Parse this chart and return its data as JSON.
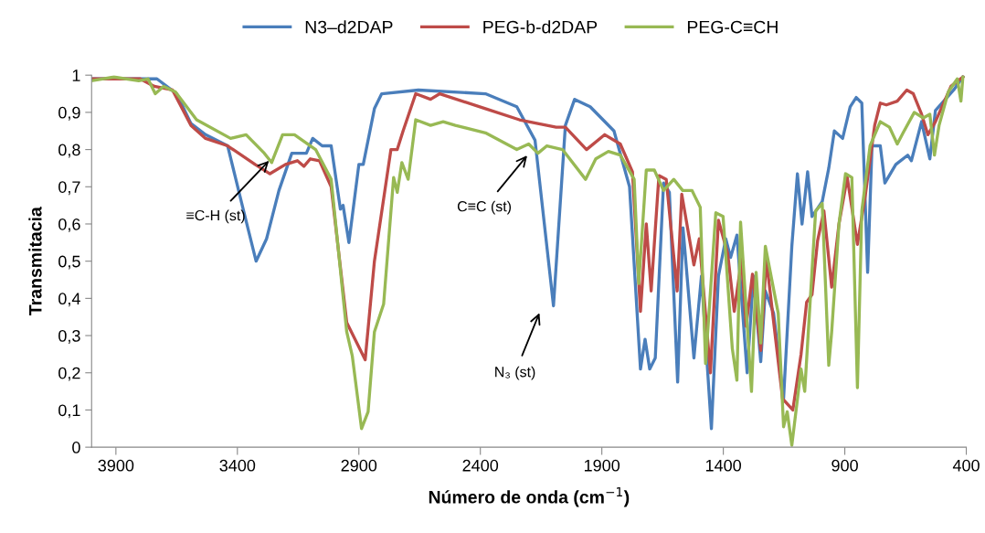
{
  "chart_data": {
    "type": "line",
    "xlabel": "Número de onda (cm$^{−1}$)",
    "ylabel": "Transmitacia",
    "xlim": [
      4000,
      400
    ],
    "xticks": [
      3900,
      3400,
      2900,
      2400,
      1900,
      1400,
      900,
      400
    ],
    "ylim": [
      0,
      1
    ],
    "yticks": [
      {
        "value": 0,
        "label": "0"
      },
      {
        "value": 0.1,
        "label": "0,1"
      },
      {
        "value": 0.2,
        "label": "0,2"
      },
      {
        "value": 0.3,
        "label": "0,3"
      },
      {
        "value": 0.4,
        "label": "0,4"
      },
      {
        "value": 0.5,
        "label": "0,5"
      },
      {
        "value": 0.6,
        "label": "0,6"
      },
      {
        "value": 0.7,
        "label": "0,7"
      },
      {
        "value": 0.8,
        "label": "0,8"
      },
      {
        "value": 0.9,
        "label": "0,9"
      },
      {
        "value": 1,
        "label": "1"
      }
    ],
    "grid": false,
    "legend": "top",
    "marker": "none",
    "line_style": "solid",
    "series": [
      {
        "name": "N3–d2DAP",
        "color": "#4a7ebb",
        "x": [
          4000,
          3800,
          3731,
          3650,
          3591,
          3531,
          3440,
          3380,
          3323,
          3280,
          3229,
          3176,
          3116,
          3090,
          3051,
          3014,
          2976,
          2965,
          2941,
          2900,
          2882,
          2836,
          2806,
          2655,
          2379,
          2250,
          2175,
          2099,
          2050,
          2012,
          1948,
          1850,
          1786,
          1741,
          1722,
          1703,
          1680,
          1646,
          1622,
          1588,
          1566,
          1521,
          1490,
          1449,
          1420,
          1390,
          1370,
          1344,
          1302,
          1276,
          1246,
          1227,
          1193,
          1152,
          1118,
          1095,
          1076,
          1053,
          1035,
          993,
          966,
          943,
          909,
          878,
          853,
          830,
          806,
          788,
          754,
          735,
          690,
          641,
          626,
          584,
          550,
          527,
          452,
          414
        ],
        "values": [
          0.99,
          0.99,
          0.99,
          0.95,
          0.87,
          0.84,
          0.81,
          0.65,
          0.5,
          0.56,
          0.69,
          0.79,
          0.79,
          0.83,
          0.81,
          0.81,
          0.64,
          0.65,
          0.55,
          0.76,
          0.76,
          0.91,
          0.95,
          0.96,
          0.95,
          0.915,
          0.825,
          0.38,
          0.865,
          0.935,
          0.915,
          0.85,
          0.7,
          0.21,
          0.29,
          0.21,
          0.24,
          0.71,
          0.685,
          0.175,
          0.59,
          0.24,
          0.46,
          0.05,
          0.46,
          0.56,
          0.51,
          0.57,
          0.2,
          0.46,
          0.23,
          0.42,
          0.36,
          0.13,
          0.54,
          0.735,
          0.6,
          0.74,
          0.62,
          0.66,
          0.75,
          0.85,
          0.83,
          0.915,
          0.94,
          0.925,
          0.47,
          0.81,
          0.81,
          0.71,
          0.76,
          0.785,
          0.77,
          0.875,
          0.775,
          0.905,
          0.96,
          0.995
        ]
      },
      {
        "name": "PEG-b-d2DAP",
        "color": "#be4b48",
        "x": [
          4000,
          3800,
          3742,
          3667,
          3591,
          3531,
          3440,
          3327,
          3266,
          3202,
          3153,
          3126,
          3100,
          3062,
          3014,
          2950,
          2874,
          2836,
          2768,
          2742,
          2718,
          2666,
          2605,
          2567,
          2379,
          2239,
          2088,
          2050,
          1963,
          1888,
          1824,
          1774,
          1741,
          1717,
          1697,
          1665,
          1635,
          1590,
          1571,
          1521,
          1499,
          1453,
          1420,
          1382,
          1355,
          1325,
          1306,
          1280,
          1246,
          1223,
          1156,
          1114,
          1080,
          1057,
          1035,
          1012,
          986,
          954,
          924,
          890,
          848,
          815,
          777,
          754,
          729,
          684,
          645,
          618,
          584,
          558,
          527,
          463,
          414
        ],
        "values": [
          0.99,
          0.99,
          0.97,
          0.96,
          0.865,
          0.83,
          0.81,
          0.76,
          0.735,
          0.76,
          0.77,
          0.755,
          0.775,
          0.77,
          0.7,
          0.335,
          0.235,
          0.5,
          0.8,
          0.8,
          0.85,
          0.95,
          0.935,
          0.95,
          0.91,
          0.88,
          0.86,
          0.86,
          0.8,
          0.84,
          0.815,
          0.74,
          0.365,
          0.6,
          0.42,
          0.73,
          0.72,
          0.42,
          0.68,
          0.49,
          0.56,
          0.2,
          0.61,
          0.52,
          0.365,
          0.505,
          0.325,
          0.465,
          0.26,
          0.505,
          0.13,
          0.1,
          0.25,
          0.39,
          0.41,
          0.555,
          0.635,
          0.43,
          0.6,
          0.725,
          0.545,
          0.68,
          0.865,
          0.925,
          0.92,
          0.93,
          0.96,
          0.95,
          0.895,
          0.84,
          0.875,
          0.97,
          0.995
        ]
      },
      {
        "name": "PEG-C≡CH",
        "color": "#98b954",
        "x": [
          4000,
          3908,
          3806,
          3768,
          3738,
          3704,
          3655,
          3568,
          3428,
          3364,
          3289,
          3259,
          3214,
          3165,
          3078,
          3014,
          2950,
          2927,
          2889,
          2862,
          2836,
          2798,
          2757,
          2742,
          2723,
          2697,
          2666,
          2605,
          2553,
          2503,
          2379,
          2250,
          2201,
          2163,
          2126,
          2062,
          1967,
          1925,
          1873,
          1824,
          1767,
          1748,
          1717,
          1684,
          1646,
          1604,
          1567,
          1529,
          1495,
          1473,
          1431,
          1401,
          1363,
          1344,
          1329,
          1284,
          1265,
          1246,
          1227,
          1174,
          1152,
          1137,
          1118,
          1080,
          1065,
          1020,
          993,
          966,
          954,
          924,
          897,
          871,
          848,
          830,
          796,
          754,
          716,
          684,
          660,
          614,
          577,
          550,
          531,
          512,
          474,
          437,
          422,
          414
        ],
        "values": [
          0.985,
          0.995,
          0.985,
          0.99,
          0.95,
          0.97,
          0.955,
          0.88,
          0.83,
          0.84,
          0.79,
          0.765,
          0.84,
          0.84,
          0.8,
          0.72,
          0.31,
          0.245,
          0.05,
          0.095,
          0.31,
          0.385,
          0.725,
          0.685,
          0.765,
          0.72,
          0.88,
          0.865,
          0.875,
          0.865,
          0.845,
          0.8,
          0.815,
          0.79,
          0.81,
          0.8,
          0.72,
          0.775,
          0.795,
          0.785,
          0.72,
          0.44,
          0.745,
          0.745,
          0.69,
          0.72,
          0.69,
          0.69,
          0.645,
          0.225,
          0.63,
          0.62,
          0.265,
          0.18,
          0.605,
          0.15,
          0.47,
          0.28,
          0.54,
          0.36,
          0.055,
          0.095,
          0.005,
          0.21,
          0.15,
          0.635,
          0.655,
          0.22,
          0.31,
          0.6,
          0.735,
          0.725,
          0.16,
          0.635,
          0.81,
          0.875,
          0.86,
          0.815,
          0.845,
          0.9,
          0.885,
          0.895,
          0.785,
          0.865,
          0.955,
          0.99,
          0.93,
          0.995
        ]
      }
    ],
    "annotations": [
      {
        "text": "≡C-H (st)",
        "x": 3270,
        "y": 0.77
      },
      "C≡C (st)",
      "N₃ (st)"
    ]
  }
}
